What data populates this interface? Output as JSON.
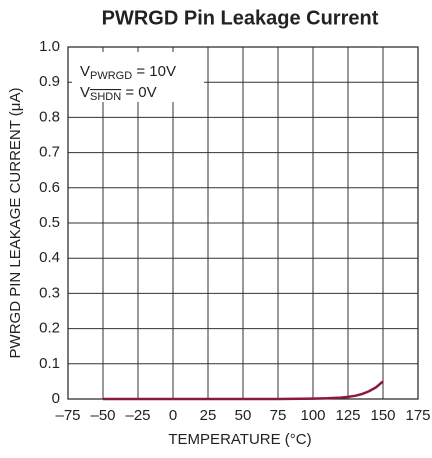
{
  "chart_data": {
    "type": "line",
    "title": "PWRGD Pin Leakage Current",
    "xlabel": "TEMPERATURE (°C)",
    "ylabel": "PWRGD PIN LEAKAGE CURRENT (μA)",
    "annotations": [
      [
        "V",
        "PWRGD",
        " = 10V"
      ],
      [
        "V",
        "SHDN",
        " = 0V"
      ]
    ],
    "xlim": [
      -75,
      175
    ],
    "ylim": [
      0,
      1
    ],
    "xticks": [
      {
        "value": -75,
        "label": "–75"
      },
      {
        "value": -50,
        "label": "–50"
      },
      {
        "value": -25,
        "label": "–25"
      },
      0,
      25,
      50,
      75,
      100,
      125,
      150,
      175
    ],
    "yticks": [
      0,
      0.1,
      0.2,
      0.3,
      0.4,
      0.5,
      0.6,
      0.7,
      0.8,
      0.9,
      {
        "value": 1,
        "label": "1.0"
      }
    ],
    "grid": true,
    "series": [
      {
        "color": "#8b1a3a",
        "x": [
          -50,
          -25,
          0,
          25,
          50,
          75,
          100,
          110,
          120,
          125,
          130,
          135,
          140,
          145,
          150
        ],
        "values": [
          0,
          0,
          0,
          0,
          0,
          0,
          0.001,
          0.002,
          0.004,
          0.006,
          0.009,
          0.014,
          0.022,
          0.033,
          0.05
        ]
      }
    ]
  }
}
